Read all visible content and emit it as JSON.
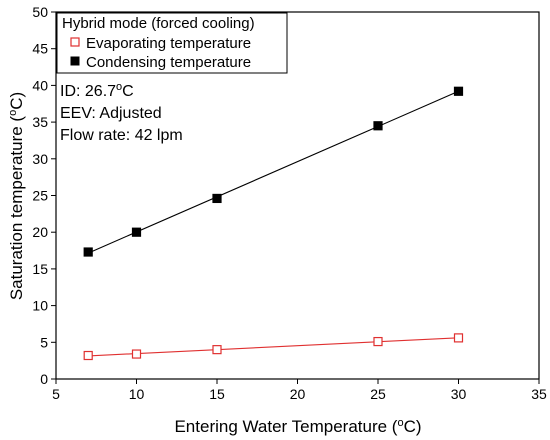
{
  "chart_data": {
    "type": "scatter",
    "xlabel_main": "Entering Water Temperature (",
    "xlabel_sup": "o",
    "xlabel_end": "C)",
    "ylabel_main": "Saturation temperature (",
    "ylabel_sup": "o",
    "ylabel_end": "C)",
    "xlim": [
      5,
      35
    ],
    "ylim": [
      0,
      50
    ],
    "x_ticks": [
      5,
      10,
      15,
      20,
      25,
      30,
      35
    ],
    "y_ticks": [
      0,
      5,
      10,
      15,
      20,
      25,
      30,
      35,
      40,
      45,
      50
    ],
    "grid": false,
    "legend": {
      "title": "Hybrid mode (forced cooling)",
      "placement": "top-left"
    },
    "series": [
      {
        "name": "Evaporating temperature",
        "marker": "open-square",
        "color": "#e03030",
        "fit": "linear",
        "x": [
          7,
          10,
          15,
          25,
          30
        ],
        "y": [
          3.2,
          3.4,
          4.0,
          5.1,
          5.6
        ]
      },
      {
        "name": "Condensing temperature",
        "marker": "filled-square",
        "color": "#000000",
        "fit": "linear",
        "x": [
          7,
          10,
          15,
          25,
          30
        ],
        "y": [
          17.3,
          20.0,
          24.6,
          34.5,
          39.2
        ]
      }
    ],
    "annotations": [
      {
        "main": "ID: 26.7",
        "sup": "o",
        "end": "C"
      },
      {
        "main": "EEV: Adjusted",
        "sup": "",
        "end": ""
      },
      {
        "main": "Flow rate: 42 lpm",
        "sup": "",
        "end": ""
      }
    ]
  }
}
